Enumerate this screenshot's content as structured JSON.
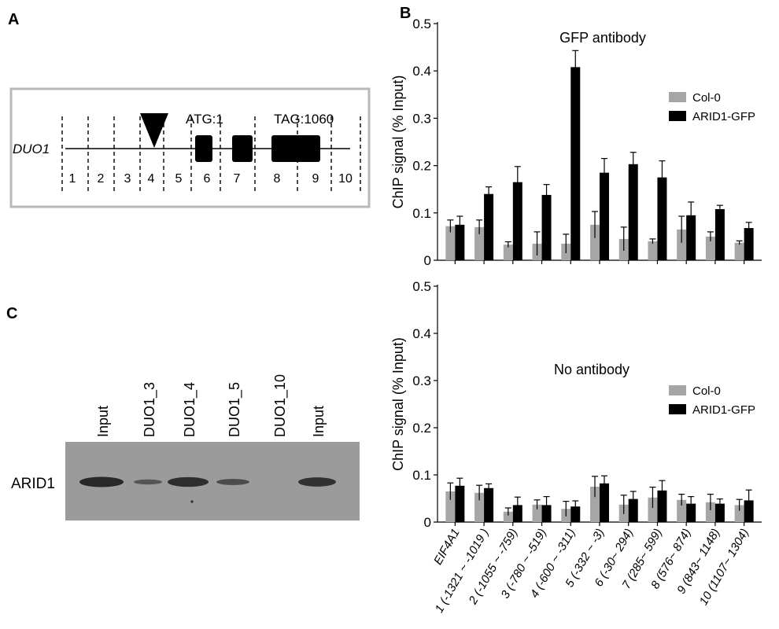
{
  "panels": {
    "a": "A",
    "b": "B",
    "c": "C"
  },
  "gene_diagram": {
    "gene_name": "DUO1",
    "atg_label": "ATG:1",
    "tag_label": "TAG:1060",
    "region_numbers": [
      "1",
      "2",
      "3",
      "4",
      "5",
      "6",
      "7",
      "8",
      "9",
      "10"
    ]
  },
  "western": {
    "protein_label": "ARID1",
    "lanes": [
      "Input",
      "DUO1_3",
      "DUO1_4",
      "DUO1_5",
      "DUO1_10",
      "Input"
    ],
    "band_intensity": [
      1.0,
      0.5,
      0.95,
      0.6,
      0.0,
      0.9
    ]
  },
  "colors": {
    "col0": "#a6a6a6",
    "arid1": "#000000",
    "blot_bg": "#9b9b9b",
    "box_border": "#b8b8b8"
  },
  "chart_data": [
    {
      "type": "bar",
      "title": "GFP antibody",
      "ylabel": "ChIP signal (% Input)",
      "ylim": [
        0,
        0.5
      ],
      "yticks": [
        "0",
        "0.1",
        "0.2",
        "0.3",
        "0.4",
        "0.5"
      ],
      "categories": [
        "EIF4A1",
        "1 (-1321 ~ -1019 )",
        "2 (-1055 ~ -759)",
        "3 (-780 ~ -519)",
        "4 (-600 ~ -311)",
        "5 (-332 ~ -3)",
        "6 (-30~ 294)",
        "7 (285~ 599)",
        "8 (576~ 874)",
        "9 (843~ 1148)",
        "10 (1107~ 1304)"
      ],
      "legend_position": "right",
      "series": [
        {
          "name": "Col-0",
          "values": [
            0.072,
            0.07,
            0.033,
            0.035,
            0.035,
            0.075,
            0.045,
            0.04,
            0.065,
            0.05,
            0.037
          ],
          "errors": [
            0.013,
            0.015,
            0.006,
            0.025,
            0.02,
            0.028,
            0.025,
            0.005,
            0.028,
            0.01,
            0.004
          ]
        },
        {
          "name": "ARID1-GFP",
          "values": [
            0.075,
            0.14,
            0.165,
            0.138,
            0.408,
            0.185,
            0.203,
            0.175,
            0.095,
            0.108,
            0.068
          ],
          "errors": [
            0.018,
            0.015,
            0.033,
            0.022,
            0.035,
            0.03,
            0.025,
            0.035,
            0.028,
            0.008,
            0.012
          ]
        }
      ]
    },
    {
      "type": "bar",
      "title": "No antibody",
      "ylabel": "ChIP signal (% Input)",
      "ylim": [
        0,
        0.5
      ],
      "yticks": [
        "0",
        "0.1",
        "0.2",
        "0.3",
        "0.4",
        "0.5"
      ],
      "categories": [
        "EIF4A1",
        "1 (-1321 ~ -1019 )",
        "2 (-1055 ~ -759)",
        "3 (-780 ~ -519)",
        "4 (-600 ~ -311)",
        "5 (-332 ~ -3)",
        "6 (-30~ 294)",
        "7 (285~ 599)",
        "8 (576~ 874)",
        "9 (843~ 1148)",
        "10 (1107~ 1304)"
      ],
      "legend_position": "right",
      "series": [
        {
          "name": "Col-0",
          "values": [
            0.065,
            0.062,
            0.022,
            0.037,
            0.028,
            0.075,
            0.037,
            0.052,
            0.047,
            0.042,
            0.036
          ],
          "errors": [
            0.018,
            0.016,
            0.008,
            0.01,
            0.016,
            0.022,
            0.02,
            0.022,
            0.012,
            0.017,
            0.012
          ]
        },
        {
          "name": "ARID1-GFP",
          "values": [
            0.077,
            0.072,
            0.036,
            0.036,
            0.033,
            0.082,
            0.049,
            0.067,
            0.039,
            0.039,
            0.046
          ],
          "errors": [
            0.016,
            0.009,
            0.017,
            0.018,
            0.012,
            0.016,
            0.016,
            0.021,
            0.015,
            0.01,
            0.022
          ]
        }
      ]
    }
  ]
}
